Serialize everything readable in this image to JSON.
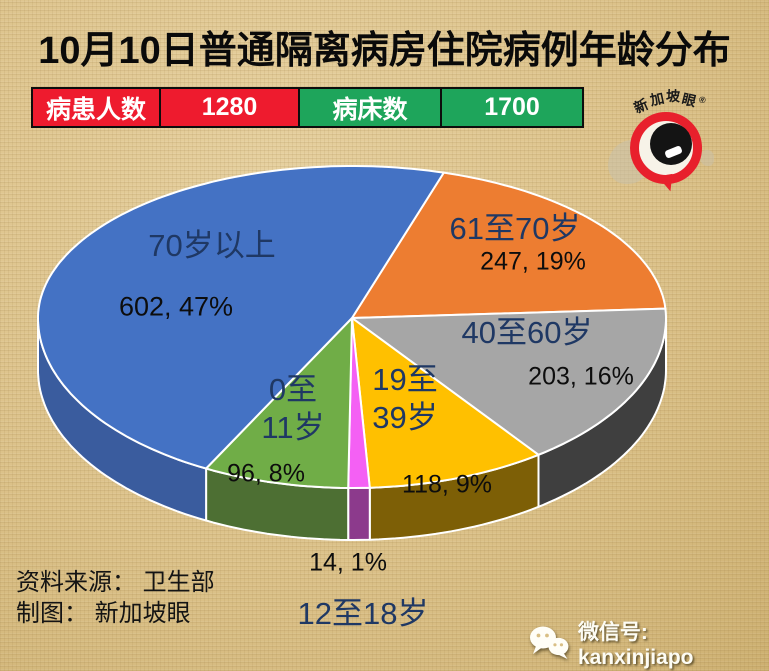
{
  "title": "10月10日普通隔离病房住院病例年龄分布",
  "stats_bar": {
    "patients_label": "病患人数",
    "patients_value": "1280",
    "beds_label": "病床数",
    "beds_value": "1700",
    "patients_color": "#EE1B2E",
    "beds_color": "#1EA55B"
  },
  "logo": {
    "brand": "新加坡眼",
    "trademark": "®",
    "red": "#E8202C"
  },
  "chart_data": {
    "type": "pie",
    "title": "10月10日普通隔离病房住院病例年龄分布",
    "total": 1280,
    "start_angle_deg": 17,
    "labels_on_chart": true,
    "value_label_sep": ", ",
    "label_color": "#1F3864",
    "value_color": "#0D0D0D",
    "slices": [
      {
        "label": "61至70岁",
        "label_lines": [
          "61至70岁"
        ],
        "value": 247,
        "pct": "19%",
        "color": "#ED7D31",
        "side_color": "#A85A1E"
      },
      {
        "label": "40至60岁",
        "label_lines": [
          "40至60岁"
        ],
        "value": 203,
        "pct": "16%",
        "color": "#A6A6A6",
        "side_color": "#3F3F3F"
      },
      {
        "label": "19至39岁",
        "label_lines": [
          "19至",
          "39岁"
        ],
        "value": 118,
        "pct": "9%",
        "color": "#FFC000",
        "side_color": "#7D5F06"
      },
      {
        "label": "12至18岁",
        "label_lines": [
          "12至18岁"
        ],
        "value": 14,
        "pct": "1%",
        "color": "#F460F4",
        "side_color": "#8C3A8C"
      },
      {
        "label": "0至11岁",
        "label_lines": [
          "0至",
          "11岁"
        ],
        "value": 96,
        "pct": "8%",
        "color": "#70AD47",
        "side_color": "#4D6F33"
      },
      {
        "label": "70岁以上",
        "label_lines": [
          "70岁以上"
        ],
        "value": 602,
        "pct": "47%",
        "color": "#4472C4",
        "side_color": "#3A5C9E"
      }
    ]
  },
  "footer": {
    "source": "资料来源： 卫生部",
    "credit": "制图： 新加坡眼"
  },
  "wechat": {
    "label": "微信号: kanxinjiapo"
  }
}
